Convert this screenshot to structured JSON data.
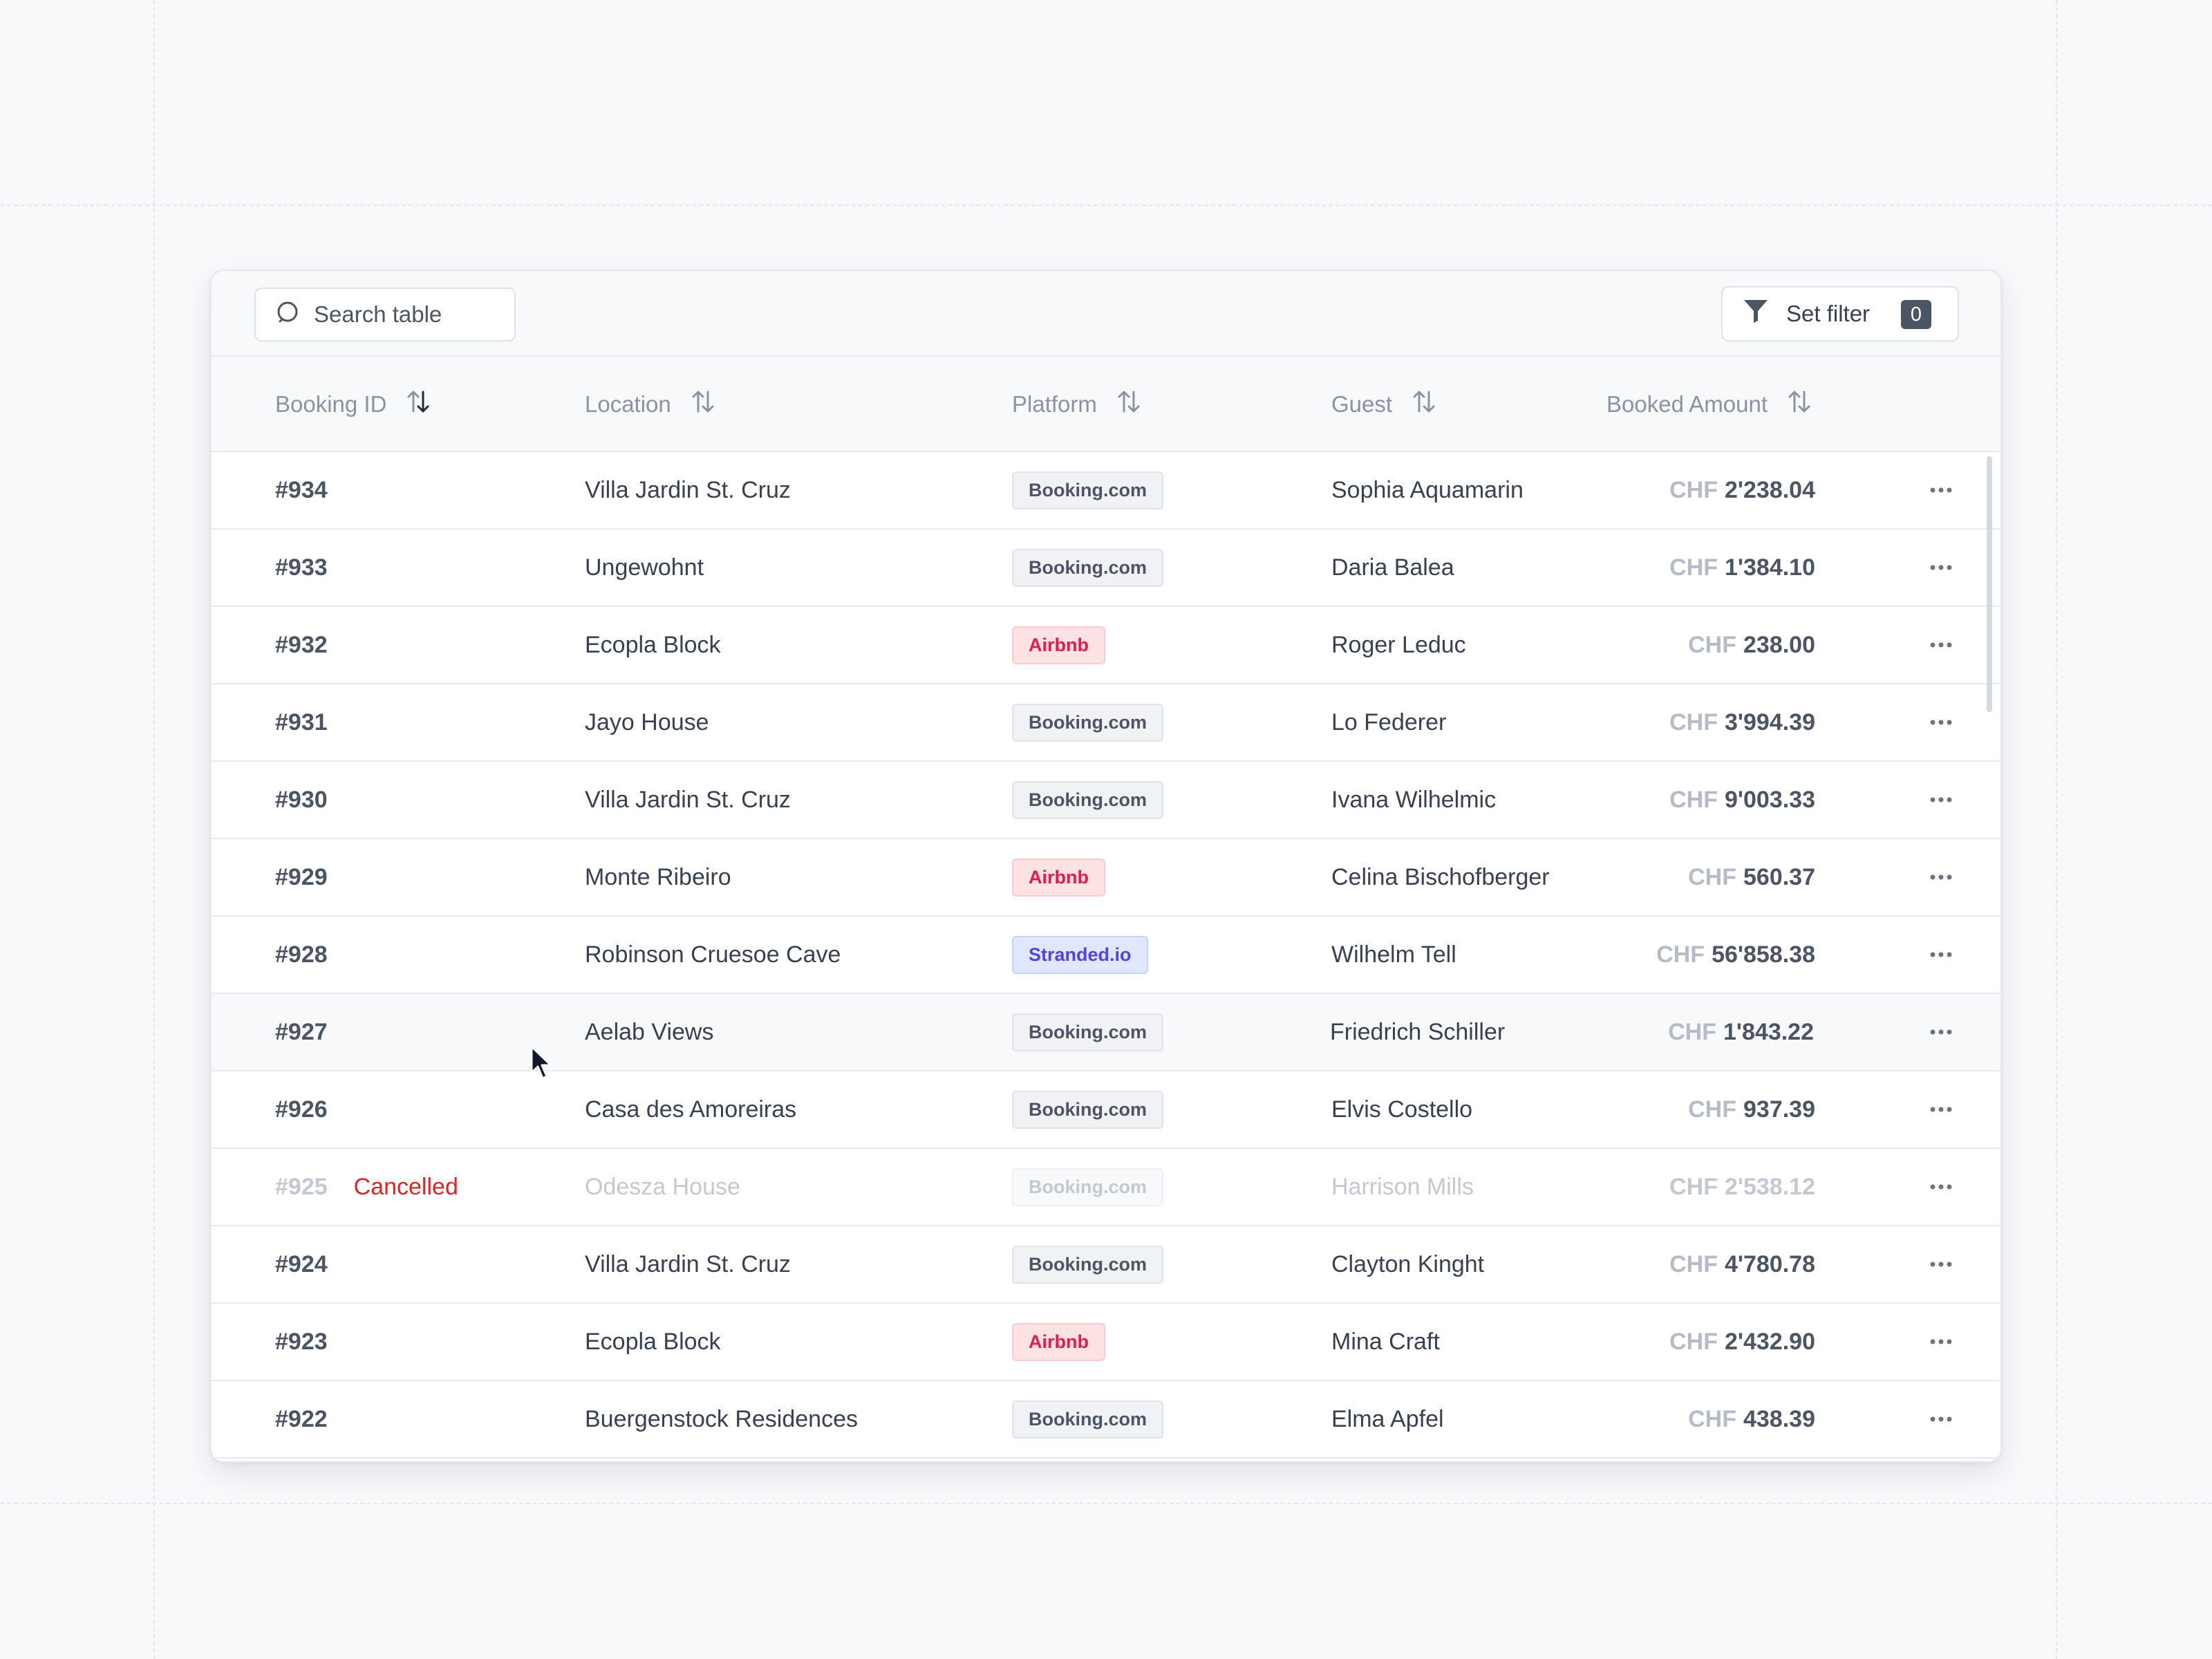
{
  "search": {
    "placeholder": "Search table"
  },
  "filter": {
    "label": "Set filter",
    "count": "0"
  },
  "columns": [
    "Booking ID",
    "Location",
    "Platform",
    "Guest",
    "Booked Amount"
  ],
  "rows": [
    {
      "id": "#934",
      "status": "",
      "location": "Villa Jardin St. Cruz",
      "platform": "Booking.com",
      "platform_type": "booking",
      "guest": "Sophia Aquamarin",
      "currency": "CHF",
      "amount": "2'238.04"
    },
    {
      "id": "#933",
      "status": "",
      "location": "Ungewohnt",
      "platform": "Booking.com",
      "platform_type": "booking",
      "guest": "Daria Balea",
      "currency": "CHF",
      "amount": "1'384.10"
    },
    {
      "id": "#932",
      "status": "",
      "location": "Ecopla Block",
      "platform": "Airbnb",
      "platform_type": "airbnb",
      "guest": "Roger Leduc",
      "currency": "CHF",
      "amount": "238.00"
    },
    {
      "id": "#931",
      "status": "",
      "location": "Jayo House",
      "platform": "Booking.com",
      "platform_type": "booking",
      "guest": "Lo Federer",
      "currency": "CHF",
      "amount": "3'994.39"
    },
    {
      "id": "#930",
      "status": "",
      "location": "Villa Jardin St. Cruz",
      "platform": "Booking.com",
      "platform_type": "booking",
      "guest": "Ivana Wilhelmic",
      "currency": "CHF",
      "amount": "9'003.33"
    },
    {
      "id": "#929",
      "status": "",
      "location": "Monte Ribeiro",
      "platform": "Airbnb",
      "platform_type": "airbnb",
      "guest": "Celina Bischofberger",
      "currency": "CHF",
      "amount": "560.37"
    },
    {
      "id": "#928",
      "status": "",
      "location": "Robinson Cruesoe Cave",
      "platform": "Stranded.io",
      "platform_type": "stranded",
      "guest": "Wilhelm Tell",
      "currency": "CHF",
      "amount": "56'858.38"
    },
    {
      "id": "#927",
      "status": "",
      "location": "Aelab Views",
      "platform": "Booking.com",
      "platform_type": "booking",
      "guest": "Friedrich Schiller",
      "currency": "CHF",
      "amount": "1'843.22"
    },
    {
      "id": "#926",
      "status": "",
      "location": "Casa des Amoreiras",
      "platform": "Booking.com",
      "platform_type": "booking",
      "guest": "Elvis Costello",
      "currency": "CHF",
      "amount": "937.39"
    },
    {
      "id": "#925",
      "status": "Cancelled",
      "location": "Odesza House",
      "platform": "Booking.com",
      "platform_type": "booking",
      "guest": "Harrison Mills",
      "currency": "CHF",
      "amount": "2'538.12"
    },
    {
      "id": "#924",
      "status": "",
      "location": "Villa Jardin St. Cruz",
      "platform": "Booking.com",
      "platform_type": "booking",
      "guest": "Clayton Kinght",
      "currency": "CHF",
      "amount": "4'780.78"
    },
    {
      "id": "#923",
      "status": "",
      "location": "Ecopla Block",
      "platform": "Airbnb",
      "platform_type": "airbnb",
      "guest": "Mina Craft",
      "currency": "CHF",
      "amount": "2'432.90"
    },
    {
      "id": "#922",
      "status": "",
      "location": "Buergenstock Residences",
      "platform": "Booking.com",
      "platform_type": "booking",
      "guest": "Elma Apfel",
      "currency": "CHF",
      "amount": "438.39"
    }
  ],
  "icons": {
    "search": "search-icon",
    "filter": "funnel-icon",
    "sort": "sort-arrows-icon",
    "row_menu": "more-horizontal-icon"
  },
  "colors": {
    "airbnb": "#e11d48",
    "stranded": "#4f46e5",
    "cancelled": "#dc2626"
  }
}
